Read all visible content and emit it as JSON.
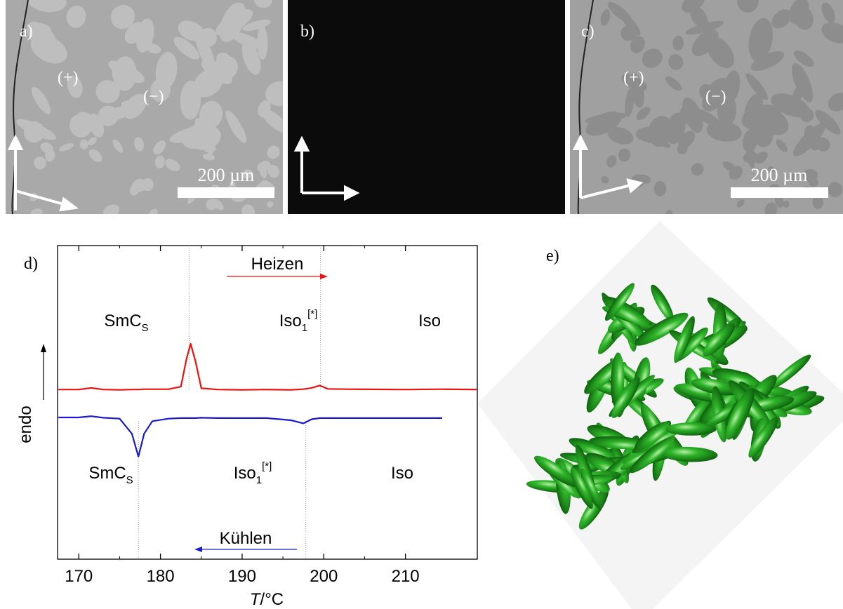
{
  "panels": {
    "a": {
      "label": "a)",
      "plus": "(+)",
      "minus": "(−)",
      "scale_bar": "200 µm"
    },
    "b": {
      "label": "b)"
    },
    "c": {
      "label": "c)",
      "plus": "(+)",
      "minus": "(−)",
      "scale_bar": "200 µm"
    },
    "e": {
      "label": "e)"
    }
  },
  "chart_data": {
    "type": "line",
    "label": "d)",
    "x_label": {
      "italic": "T",
      "rest": "/°C"
    },
    "y_label": "endo",
    "x": [
      167.5,
      170,
      171.5,
      173,
      175,
      176.5,
      177.3,
      178,
      179,
      181,
      182.5,
      183.2,
      183.7,
      184.3,
      185,
      187,
      190,
      193,
      196,
      197.5,
      198.5,
      199.5,
      200.5,
      203,
      210,
      214.5,
      218.8
    ],
    "series": [
      {
        "name": "Heizen",
        "color": "#e8130f",
        "values": [
          54.1,
          54.1,
          54.6,
          54.1,
          54.0,
          54.1,
          54.1,
          54.2,
          54.2,
          54.2,
          55.0,
          64.0,
          68.7,
          63.0,
          54.5,
          54.1,
          54.0,
          54.1,
          54.0,
          54.2,
          54.6,
          55.4,
          54.3,
          54.2,
          54.1,
          54.2,
          54.1
        ]
      },
      {
        "name": "Kühlen",
        "color": "#1a1acc",
        "values": [
          45.2,
          45.2,
          45.6,
          45.1,
          44.8,
          40.0,
          32.7,
          40.0,
          44.0,
          44.8,
          45.0,
          45.0,
          45.0,
          45.0,
          45.1,
          45.0,
          45.0,
          45.0,
          44.3,
          43.3,
          44.6,
          45.0,
          45.0,
          45.0,
          45.0,
          45.0,
          null
        ]
      }
    ],
    "transitions_heating": [
      183.5,
      199.6
    ],
    "transitions_cooling": [
      177.3,
      197.8
    ],
    "phases_heating": [
      {
        "main": "SmC",
        "sub": "S"
      },
      {
        "main": "Iso",
        "sub": "1",
        "sup": "[*]"
      },
      {
        "main": "Iso"
      }
    ],
    "phases_cooling": [
      {
        "main": "SmC",
        "sub": "S"
      },
      {
        "main": "Iso",
        "sub": "1",
        "sup": "[*]"
      },
      {
        "main": "Iso"
      }
    ],
    "xlim": [
      167.4,
      218.8
    ],
    "xticks": [
      170,
      180,
      190,
      200,
      210
    ],
    "ylim": [
      0,
      100
    ]
  }
}
